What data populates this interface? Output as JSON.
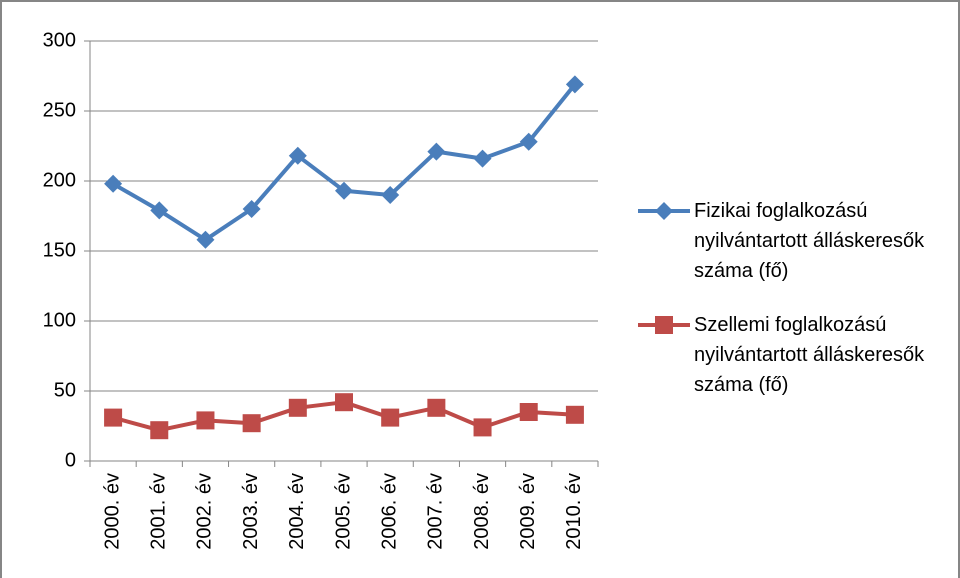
{
  "chart_data": {
    "type": "line",
    "categories": [
      "2000. év",
      "2001. év",
      "2002. év",
      "2003. év",
      "2004. év",
      "2005. év",
      "2006. év",
      "2007. év",
      "2008. év",
      "2009. év",
      "2010. év"
    ],
    "series": [
      {
        "name": "Fizikai foglalkozású nyilvántartott álláskeresők száma (fő)",
        "color": "#4a7ebb",
        "marker": "diamond",
        "values": [
          198,
          179,
          158,
          180,
          218,
          193,
          190,
          221,
          216,
          228,
          269
        ]
      },
      {
        "name": "Szellemi foglalkozású nyilvántartott álláskeresők száma (fő)",
        "color": "#be4b48",
        "marker": "square",
        "values": [
          31,
          22,
          29,
          27,
          38,
          42,
          31,
          38,
          24,
          35,
          33
        ]
      }
    ],
    "ylim": [
      0,
      300
    ],
    "yticks": [
      0,
      50,
      100,
      150,
      200,
      250,
      300
    ],
    "grid": true,
    "legend": "right"
  }
}
